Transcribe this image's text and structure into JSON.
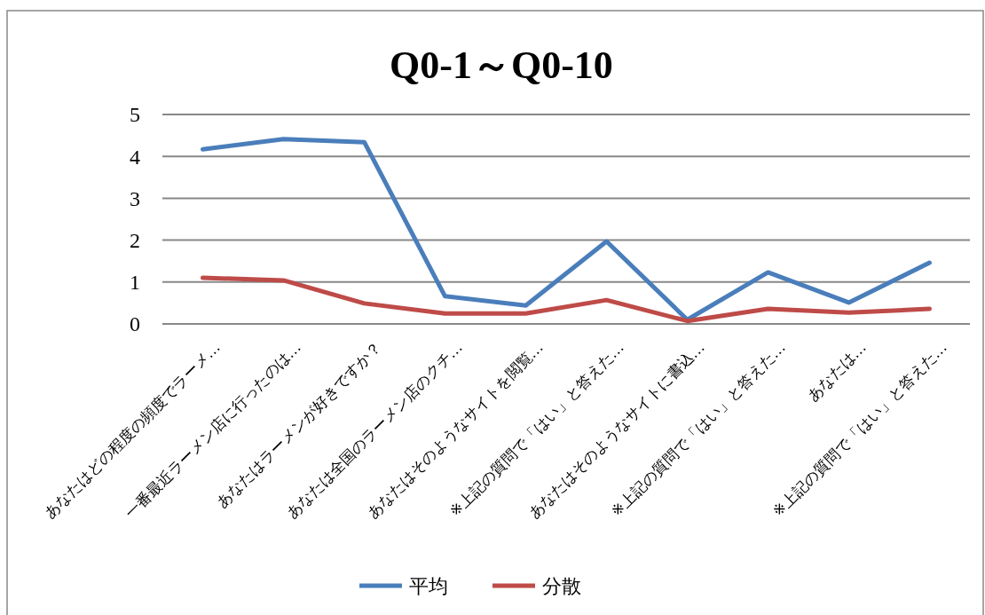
{
  "chart_data": {
    "type": "line",
    "title": "Q0-1～Q0-10",
    "categories": [
      "あなたはどの程度の頻度でラーメ…",
      "一番最近ラーメン店に行ったのは…",
      "あなたはラーメンが好きですか？",
      "あなたは全国のラーメン店のクチ…",
      "あなたはそのようなサイトを閲覧…",
      "※上記の質問で「はい」と答えた…",
      "あなたはそのようなサイトに書込…",
      "※上記の質問で「はい」と答えた…",
      "あなたは…",
      "※上記の質問で「はい」と答えた…"
    ],
    "series": [
      {
        "name": "平均",
        "color": "#4a7ebb",
        "values": [
          4.17,
          4.41,
          4.34,
          0.66,
          0.44,
          1.97,
          0.1,
          1.23,
          0.51,
          1.46
        ]
      },
      {
        "name": "分散",
        "color": "#be4b48",
        "values": [
          1.1,
          1.04,
          0.49,
          0.25,
          0.25,
          0.57,
          0.07,
          0.36,
          0.27,
          0.36
        ]
      }
    ],
    "ylim": [
      0,
      5
    ],
    "yticks": [
      0,
      1,
      2,
      3,
      4,
      5
    ],
    "grid": "y",
    "legend": "bottom",
    "marker": "none",
    "line_style": "solid"
  }
}
